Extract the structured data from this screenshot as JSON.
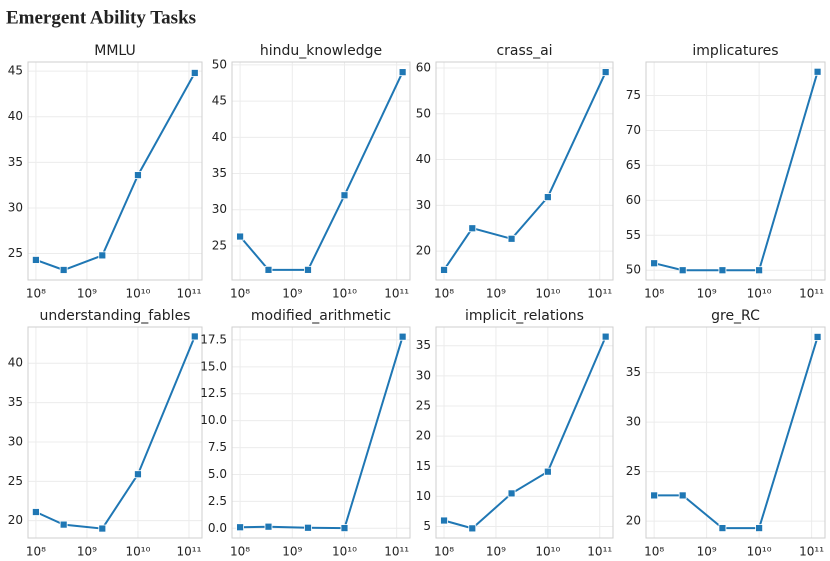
{
  "title": "Emergent Ability Tasks",
  "chart_data": [
    {
      "type": "line",
      "title": "MMLU",
      "x": [
        100000000.0,
        350000000.0,
        2000000000.0,
        10000000000.0,
        130000000000.0
      ],
      "xscale": "log",
      "xlim": [
        70000000.0,
        180000000000.0
      ],
      "xticks": [
        {
          "value": 100000000.0,
          "label": "10⁸"
        },
        {
          "value": 1000000000.0,
          "label": "10⁹"
        },
        {
          "value": 10000000000.0,
          "label": "10¹⁰"
        },
        {
          "value": 100000000000.0,
          "label": "10¹¹"
        }
      ],
      "values": [
        24.3,
        23.2,
        24.8,
        33.6,
        44.8
      ],
      "color": "#1f77b4",
      "ylim": [
        22.1,
        46
      ],
      "yticks": [
        25,
        30,
        35,
        40,
        45
      ],
      "grid": true
    },
    {
      "type": "line",
      "title": "hindu_knowledge",
      "x": [
        100000000.0,
        350000000.0,
        2000000000.0,
        10000000000.0,
        130000000000.0
      ],
      "xscale": "log",
      "xlim": [
        70000000.0,
        180000000000.0
      ],
      "xticks": [
        {
          "value": 100000000.0,
          "label": "10⁸"
        },
        {
          "value": 1000000000.0,
          "label": "10⁹"
        },
        {
          "value": 10000000000.0,
          "label": "10¹⁰"
        },
        {
          "value": 100000000000.0,
          "label": "10¹¹"
        }
      ],
      "values": [
        26.3,
        21.7,
        21.7,
        32,
        49
      ],
      "color": "#1f77b4",
      "ylim": [
        20.3,
        50.4
      ],
      "yticks": [
        25,
        30,
        35,
        40,
        45,
        50
      ],
      "grid": true
    },
    {
      "type": "line",
      "title": "crass_ai",
      "x": [
        100000000.0,
        350000000.0,
        2000000000.0,
        10000000000.0,
        130000000000.0
      ],
      "xscale": "log",
      "xlim": [
        70000000.0,
        180000000000.0
      ],
      "xticks": [
        {
          "value": 100000000.0,
          "label": "10⁸"
        },
        {
          "value": 1000000000.0,
          "label": "10⁹"
        },
        {
          "value": 10000000000.0,
          "label": "10¹⁰"
        },
        {
          "value": 100000000000.0,
          "label": "10¹¹"
        }
      ],
      "values": [
        15.9,
        25,
        22.7,
        31.8,
        59.1
      ],
      "color": "#1f77b4",
      "ylim": [
        13.7,
        61.3
      ],
      "yticks": [
        20,
        30,
        40,
        50,
        60
      ],
      "grid": true
    },
    {
      "type": "line",
      "title": "implicatures",
      "x": [
        100000000.0,
        350000000.0,
        2000000000.0,
        10000000000.0,
        130000000000.0
      ],
      "xscale": "log",
      "xlim": [
        70000000.0,
        180000000000.0
      ],
      "xticks": [
        {
          "value": 100000000.0,
          "label": "10⁸"
        },
        {
          "value": 1000000000.0,
          "label": "10⁹"
        },
        {
          "value": 10000000000.0,
          "label": "10¹⁰"
        },
        {
          "value": 100000000000.0,
          "label": "10¹¹"
        }
      ],
      "values": [
        51,
        50,
        50,
        50,
        78.4
      ],
      "color": "#1f77b4",
      "ylim": [
        48.6,
        79.8
      ],
      "yticks": [
        50,
        55,
        60,
        65,
        70,
        75
      ],
      "grid": true
    },
    {
      "type": "line",
      "title": "understanding_fables",
      "x": [
        100000000.0,
        350000000.0,
        2000000000.0,
        10000000000.0,
        130000000000.0
      ],
      "xscale": "log",
      "xlim": [
        70000000.0,
        180000000000.0
      ],
      "xticks": [
        {
          "value": 100000000.0,
          "label": "10⁸"
        },
        {
          "value": 1000000000.0,
          "label": "10⁹"
        },
        {
          "value": 10000000000.0,
          "label": "10¹⁰"
        },
        {
          "value": 100000000000.0,
          "label": "10¹¹"
        }
      ],
      "values": [
        21.1,
        19.5,
        19,
        25.9,
        43.4
      ],
      "color": "#1f77b4",
      "ylim": [
        17.8,
        44.6
      ],
      "yticks": [
        20,
        25,
        30,
        35,
        40
      ],
      "grid": true
    },
    {
      "type": "line",
      "title": "modified_arithmetic",
      "x": [
        100000000.0,
        350000000.0,
        2000000000.0,
        10000000000.0,
        130000000000.0
      ],
      "xscale": "log",
      "xlim": [
        70000000.0,
        180000000000.0
      ],
      "xticks": [
        {
          "value": 100000000.0,
          "label": "10⁸"
        },
        {
          "value": 1000000000.0,
          "label": "10⁹"
        },
        {
          "value": 10000000000.0,
          "label": "10¹⁰"
        },
        {
          "value": 100000000000.0,
          "label": "10¹¹"
        }
      ],
      "values": [
        0.1,
        0.15,
        0.05,
        0.02,
        17.8
      ],
      "color": "#1f77b4",
      "ylim": [
        -0.9,
        18.7
      ],
      "yticks": [
        {
          "value": 0,
          "label": "0.0"
        },
        2.5,
        {
          "value": 5,
          "label": "5.0"
        },
        7.5,
        {
          "value": 10,
          "label": "10.0"
        },
        12.5,
        {
          "value": 15,
          "label": "15.0"
        },
        17.5
      ],
      "grid": true
    },
    {
      "type": "line",
      "title": "implicit_relations",
      "x": [
        100000000.0,
        350000000.0,
        2000000000.0,
        10000000000.0,
        130000000000.0
      ],
      "xscale": "log",
      "xlim": [
        70000000.0,
        180000000000.0
      ],
      "xticks": [
        {
          "value": 100000000.0,
          "label": "10⁸"
        },
        {
          "value": 1000000000.0,
          "label": "10⁹"
        },
        {
          "value": 10000000000.0,
          "label": "10¹⁰"
        },
        {
          "value": 100000000000.0,
          "label": "10¹¹"
        }
      ],
      "values": [
        6,
        4.7,
        10.5,
        14.1,
        36.5
      ],
      "color": "#1f77b4",
      "ylim": [
        3.1,
        38.1
      ],
      "yticks": [
        5,
        10,
        15,
        20,
        25,
        30,
        35
      ],
      "grid": true
    },
    {
      "type": "line",
      "title": "gre_RC",
      "x": [
        100000000.0,
        350000000.0,
        2000000000.0,
        10000000000.0,
        130000000000.0
      ],
      "xscale": "log",
      "xlim": [
        70000000.0,
        180000000000.0
      ],
      "xticks": [
        {
          "value": 100000000.0,
          "label": "10⁸"
        },
        {
          "value": 1000000000.0,
          "label": "10⁹"
        },
        {
          "value": 10000000000.0,
          "label": "10¹⁰"
        },
        {
          "value": 100000000000.0,
          "label": "10¹¹"
        }
      ],
      "values": [
        22.6,
        22.6,
        19.3,
        19.3,
        38.6
      ],
      "color": "#1f77b4",
      "ylim": [
        18.3,
        39.6
      ],
      "yticks": [
        20,
        25,
        30,
        35
      ],
      "grid": true
    }
  ]
}
